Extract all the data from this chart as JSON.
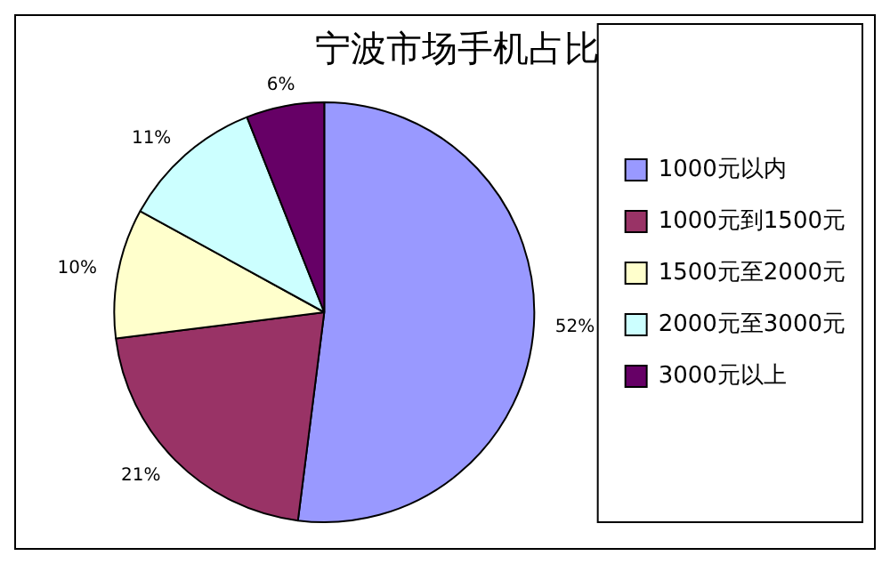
{
  "chart_data": {
    "type": "pie",
    "title": "宁波市场手机占比",
    "categories": [
      "1000元以内",
      "1000元到1500元",
      "1500元至2000元",
      "2000元至3000元",
      "3000元以上"
    ],
    "values": [
      52,
      21,
      10,
      11,
      6
    ],
    "value_labels": [
      "52%",
      "21%",
      "10%",
      "11%",
      "6%"
    ],
    "colors": [
      "#9999ff",
      "#993366",
      "#ffffcc",
      "#ccffff",
      "#660066"
    ],
    "legend": "right"
  }
}
